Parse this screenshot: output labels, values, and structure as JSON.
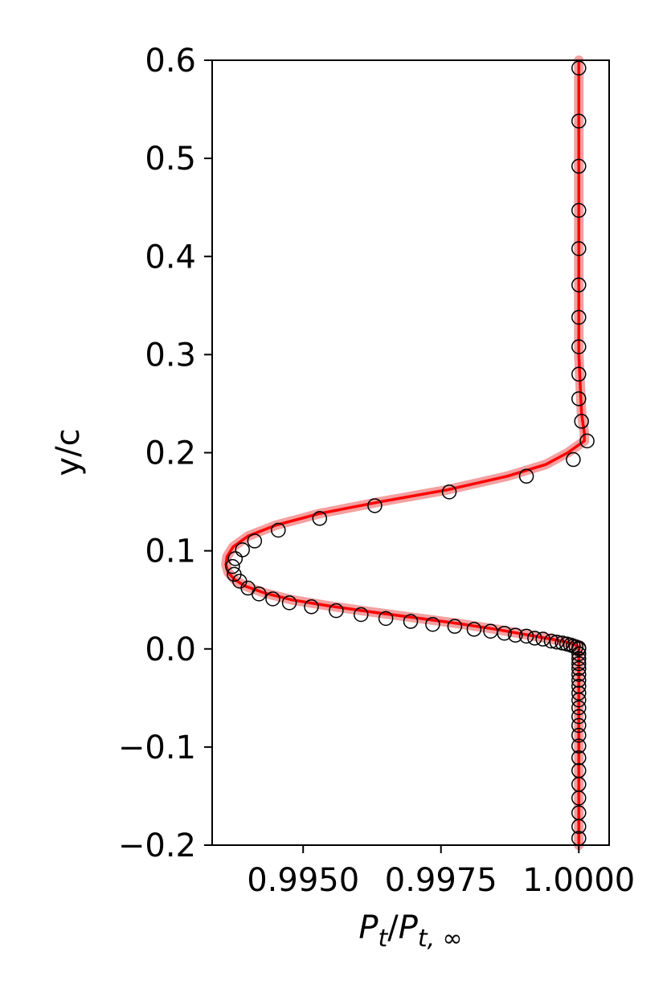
{
  "chart_data": {
    "type": "line",
    "xlabel": {
      "base": "P",
      "sub": "t",
      "slash": "/",
      "base2": "P",
      "sub2": "t, ∞"
    },
    "ylabel": "y/c",
    "xlim": [
      0.99335,
      1.00055
    ],
    "ylim": [
      -0.2,
      0.6
    ],
    "x_ticks": [
      0.995,
      0.9975,
      1.0
    ],
    "x_tick_labels": [
      "0.9950",
      "0.9975",
      "1.0000"
    ],
    "y_ticks": [
      -0.2,
      -0.1,
      0.0,
      0.1,
      0.2,
      0.3,
      0.4,
      0.5,
      0.6
    ],
    "y_tick_labels": [
      "−0.2",
      "−0.1",
      "0.0",
      "0.1",
      "0.2",
      "0.3",
      "0.4",
      "0.5",
      "0.6"
    ],
    "grid": false,
    "colors": {
      "line": "#ff0000",
      "band": "#f08080",
      "markers": "#000000"
    },
    "series": [
      {
        "kind": "markers",
        "points": [
          [
            1.0,
            0.592
          ],
          [
            1.0,
            0.538
          ],
          [
            1.0,
            0.492
          ],
          [
            1.0,
            0.447
          ],
          [
            1.0,
            0.408
          ],
          [
            1.0,
            0.371
          ],
          [
            1.0,
            0.338
          ],
          [
            1.0,
            0.308
          ],
          [
            1.0,
            0.28
          ],
          [
            1.0,
            0.255
          ],
          [
            1.00005,
            0.232
          ],
          [
            1.00015,
            0.212
          ],
          [
            0.9999,
            0.193
          ],
          [
            0.99905,
            0.176
          ],
          [
            0.99765,
            0.16
          ],
          [
            0.9963,
            0.146
          ],
          [
            0.9953,
            0.133
          ],
          [
            0.99455,
            0.121
          ],
          [
            0.99412,
            0.11
          ],
          [
            0.9939,
            0.101
          ],
          [
            0.99377,
            0.092
          ],
          [
            0.99372,
            0.084
          ],
          [
            0.99375,
            0.076
          ],
          [
            0.99385,
            0.069
          ],
          [
            0.994,
            0.062
          ],
          [
            0.9942,
            0.056
          ],
          [
            0.99445,
            0.051
          ],
          [
            0.99475,
            0.047
          ],
          [
            0.99515,
            0.043
          ],
          [
            0.9956,
            0.039
          ],
          [
            0.99605,
            0.035
          ],
          [
            0.9965,
            0.031
          ],
          [
            0.99695,
            0.028
          ],
          [
            0.99735,
            0.025
          ],
          [
            0.99775,
            0.023
          ],
          [
            0.9981,
            0.02
          ],
          [
            0.9984,
            0.018
          ],
          [
            0.99865,
            0.016
          ],
          [
            0.99885,
            0.014
          ],
          [
            0.99905,
            0.013
          ],
          [
            0.9992,
            0.011
          ],
          [
            0.99935,
            0.01
          ],
          [
            0.9995,
            0.008
          ],
          [
            0.9996,
            0.007
          ],
          [
            0.9997,
            0.006
          ],
          [
            0.99978,
            0.005
          ],
          [
            0.99985,
            0.004
          ],
          [
            0.9999,
            0.003
          ],
          [
            0.99995,
            0.002
          ],
          [
            1.0,
            0.001
          ],
          [
            1.0,
            0.0
          ],
          [
            1.0,
            -0.005
          ],
          [
            1.0,
            -0.01
          ],
          [
            1.0,
            -0.015
          ],
          [
            1.0,
            -0.02
          ],
          [
            1.0,
            -0.026
          ],
          [
            1.0,
            -0.032
          ],
          [
            1.0,
            -0.038
          ],
          [
            1.0,
            -0.045
          ],
          [
            1.0,
            -0.052
          ],
          [
            1.0,
            -0.06
          ],
          [
            1.0,
            -0.069
          ],
          [
            1.0,
            -0.078
          ],
          [
            1.0,
            -0.088
          ],
          [
            1.0,
            -0.099
          ],
          [
            1.0,
            -0.111
          ],
          [
            1.0,
            -0.124
          ],
          [
            1.0,
            -0.138
          ],
          [
            1.0,
            -0.152
          ],
          [
            1.0,
            -0.167
          ],
          [
            1.0,
            -0.181
          ],
          [
            1.0,
            -0.193
          ]
        ]
      },
      {
        "kind": "line",
        "points": [
          [
            1.0,
            0.6
          ],
          [
            1.0,
            0.4
          ],
          [
            1.0,
            0.3
          ],
          [
            1.00005,
            0.24
          ],
          [
            1.0001,
            0.22
          ],
          [
            1.0001,
            0.212
          ],
          [
            0.9998,
            0.2
          ],
          [
            0.9994,
            0.188
          ],
          [
            0.9987,
            0.176
          ],
          [
            0.9976,
            0.162
          ],
          [
            0.9964,
            0.15
          ],
          [
            0.9953,
            0.138
          ],
          [
            0.9945,
            0.126
          ],
          [
            0.994,
            0.115
          ],
          [
            0.99373,
            0.104
          ],
          [
            0.99362,
            0.094
          ],
          [
            0.9936,
            0.086
          ],
          [
            0.99364,
            0.078
          ],
          [
            0.99375,
            0.071
          ],
          [
            0.99395,
            0.064
          ],
          [
            0.9943,
            0.057
          ],
          [
            0.9948,
            0.05
          ],
          [
            0.99545,
            0.044
          ],
          [
            0.9962,
            0.038
          ],
          [
            0.997,
            0.032
          ],
          [
            0.9978,
            0.026
          ],
          [
            0.9985,
            0.02
          ],
          [
            0.9991,
            0.014
          ],
          [
            0.9996,
            0.009
          ],
          [
            0.9999,
            0.005
          ],
          [
            1.0,
            0.002
          ],
          [
            1.0,
            0.0
          ],
          [
            1.0,
            -0.1
          ],
          [
            1.0,
            -0.2
          ]
        ]
      }
    ]
  }
}
